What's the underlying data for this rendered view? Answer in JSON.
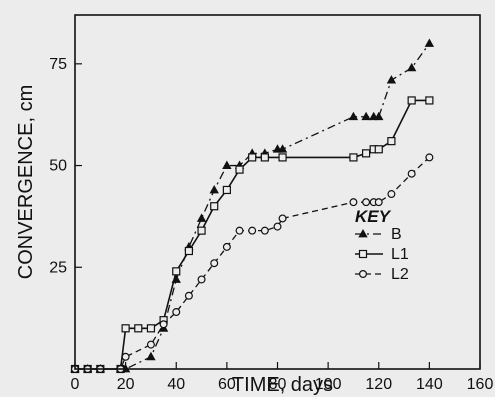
{
  "chart_data": {
    "type": "line",
    "title": "",
    "xlabel": "TIME, days",
    "ylabel": "CONVERGENCE, cm",
    "xlim": [
      0,
      160
    ],
    "ylim": [
      0,
      87
    ],
    "xticks": [
      0,
      20,
      40,
      60,
      80,
      100,
      120,
      140,
      160
    ],
    "yticks": [
      25,
      50,
      75
    ],
    "grid": false,
    "legend": {
      "title": "KEY",
      "placement": "right-middle"
    },
    "series": [
      {
        "name": "B",
        "marker": "triangle",
        "line_style": "dash-dot",
        "x": [
          0,
          5,
          10,
          18,
          20,
          30,
          35,
          40,
          45,
          50,
          55,
          60,
          65,
          70,
          75,
          80,
          82,
          110,
          115,
          118,
          120,
          125,
          133,
          140
        ],
        "y": [
          0,
          0,
          0,
          0,
          0,
          3,
          10,
          22,
          30,
          37,
          44,
          50,
          50,
          53,
          53,
          54,
          54,
          62,
          62,
          62,
          62,
          71,
          74,
          80
        ]
      },
      {
        "name": "L1",
        "marker": "square",
        "line_style": "solid",
        "x": [
          0,
          5,
          10,
          18,
          20,
          25,
          30,
          35,
          40,
          45,
          50,
          55,
          60,
          65,
          70,
          75,
          82,
          110,
          115,
          118,
          120,
          125,
          133,
          140
        ],
        "y": [
          0,
          0,
          0,
          0,
          10,
          10,
          10,
          12,
          24,
          29,
          34,
          40,
          44,
          49,
          52,
          52,
          52,
          52,
          53,
          54,
          54,
          56,
          66,
          66
        ]
      },
      {
        "name": "L2",
        "marker": "circle",
        "line_style": "dashed",
        "x": [
          0,
          5,
          10,
          18,
          20,
          30,
          35,
          40,
          45,
          50,
          55,
          60,
          65,
          70,
          75,
          80,
          82,
          110,
          115,
          118,
          120,
          125,
          133,
          140
        ],
        "y": [
          0,
          0,
          0,
          0,
          3,
          6,
          11,
          14,
          18,
          22,
          26,
          30,
          34,
          34,
          34,
          35,
          37,
          41,
          41,
          41,
          41,
          43,
          48,
          52
        ]
      }
    ]
  }
}
